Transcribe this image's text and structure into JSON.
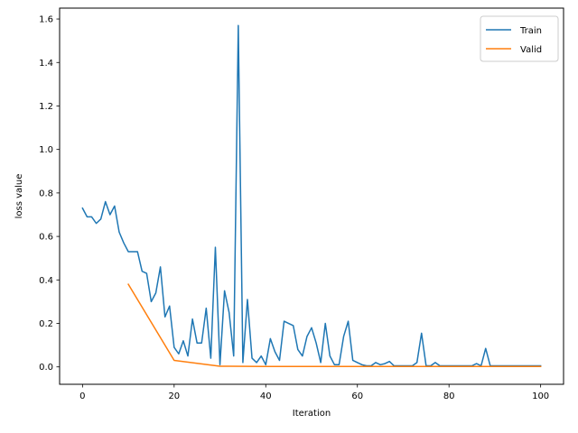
{
  "chart_data": {
    "type": "line",
    "xlabel": "Iteration",
    "ylabel": "loss value",
    "xlim": [
      -5,
      105
    ],
    "ylim": [
      -0.08,
      1.65
    ],
    "x_ticks": [
      "0",
      "20",
      "40",
      "60",
      "80",
      "100"
    ],
    "y_ticks": [
      "0.0",
      "0.2",
      "0.4",
      "0.6",
      "0.8",
      "1.0",
      "1.2",
      "1.4",
      "1.6"
    ],
    "grid": false,
    "legend_position": "top-right",
    "series": [
      {
        "name": "Train",
        "color": "#1f77b4",
        "x": [
          0,
          1,
          2,
          3,
          4,
          5,
          6,
          7,
          8,
          9,
          10,
          11,
          12,
          13,
          14,
          15,
          16,
          17,
          18,
          19,
          20,
          21,
          22,
          23,
          24,
          25,
          26,
          27,
          28,
          29,
          30,
          31,
          32,
          33,
          34,
          35,
          36,
          37,
          38,
          39,
          40,
          41,
          42,
          43,
          44,
          45,
          46,
          47,
          48,
          49,
          50,
          51,
          52,
          53,
          54,
          55,
          56,
          57,
          58,
          59,
          60,
          61,
          62,
          63,
          64,
          65,
          66,
          67,
          68,
          69,
          70,
          71,
          72,
          73,
          74,
          75,
          76,
          77,
          78,
          79,
          80,
          81,
          82,
          83,
          84,
          85,
          86,
          87,
          88,
          89,
          90,
          91,
          92,
          93,
          94,
          95,
          96,
          97,
          98,
          99,
          100
        ],
        "y": [
          0.73,
          0.69,
          0.69,
          0.66,
          0.68,
          0.76,
          0.7,
          0.74,
          0.62,
          0.57,
          0.53,
          0.53,
          0.53,
          0.44,
          0.43,
          0.3,
          0.34,
          0.46,
          0.23,
          0.28,
          0.09,
          0.06,
          0.12,
          0.05,
          0.22,
          0.11,
          0.11,
          0.27,
          0.04,
          0.55,
          0.01,
          0.35,
          0.25,
          0.05,
          1.57,
          0.02,
          0.31,
          0.04,
          0.02,
          0.05,
          0.01,
          0.13,
          0.07,
          0.03,
          0.21,
          0.2,
          0.19,
          0.08,
          0.05,
          0.14,
          0.18,
          0.11,
          0.02,
          0.2,
          0.05,
          0.01,
          0.01,
          0.14,
          0.21,
          0.03,
          0.02,
          0.01,
          0.005,
          0.005,
          0.02,
          0.01,
          0.015,
          0.025,
          0.005,
          0.005,
          0.005,
          0.005,
          0.005,
          0.02,
          0.155,
          0.005,
          0.005,
          0.02,
          0.005,
          0.005,
          0.005,
          0.005,
          0.005,
          0.005,
          0.005,
          0.005,
          0.015,
          0.005,
          0.085,
          0.005,
          0.005,
          0.005,
          0.005,
          0.005,
          0.005,
          0.005,
          0.005,
          0.005,
          0.005,
          0.005,
          0.005
        ]
      },
      {
        "name": "Valid",
        "color": "#ff7f0e",
        "x": [
          10,
          20,
          30,
          40,
          50,
          60,
          70,
          80,
          90,
          100
        ],
        "y": [
          0.38,
          0.03,
          0.003,
          0.002,
          0.002,
          0.002,
          0.002,
          0.002,
          0.002,
          0.002
        ]
      }
    ]
  }
}
